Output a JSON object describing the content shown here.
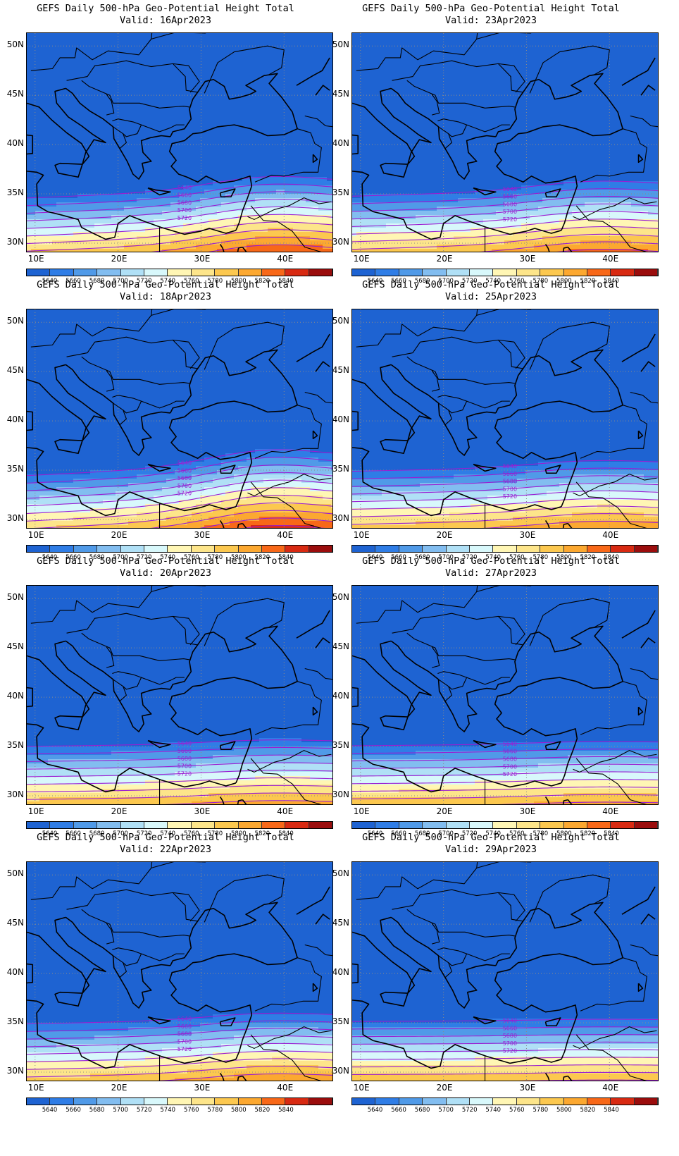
{
  "panels": [
    {
      "id": "p1",
      "title": "GEFS Daily 500-hPa Geo-Potential Height Total",
      "valid": "Valid: 16Apr2023",
      "amp": 1.0
    },
    {
      "id": "p2",
      "title": "GEFS Daily 500-hPa Geo-Potential Height Total",
      "valid": "Valid: 23Apr2023",
      "amp": 0.7
    },
    {
      "id": "p3",
      "title": "GEFS Daily 500-hPa Geo-Potential Height Total",
      "valid": "Valid: 18Apr2023",
      "amp": 1.2
    },
    {
      "id": "p4",
      "title": "GEFS Daily 500-hPa Geo-Potential Height Total",
      "valid": "Valid: 25Apr2023",
      "amp": 0.5
    },
    {
      "id": "p5",
      "title": "GEFS Daily 500-hPa Geo-Potential Height Total",
      "valid": "Valid: 20Apr2023",
      "amp": 0.3
    },
    {
      "id": "p6",
      "title": "GEFS Daily 500-hPa Geo-Potential Height Total",
      "valid": "Valid: 27Apr2023",
      "amp": 0.2
    },
    {
      "id": "p7",
      "title": "GEFS Daily 500-hPa Geo-Potential Height Total",
      "valid": "Valid: 22Apr2023",
      "amp": 0.5
    },
    {
      "id": "p8",
      "title": "GEFS Daily 500-hPa Geo-Potential Height Total",
      "valid": "Valid: 29Apr2023",
      "amp": 0.1
    }
  ],
  "lat_labels": [
    "50N",
    "45N",
    "40N",
    "35N",
    "30N"
  ],
  "lon_labels": [
    "10E",
    "20E",
    "30E",
    "40E"
  ],
  "colorbar": {
    "colors": [
      "#1e63d2",
      "#2f7de6",
      "#509ae8",
      "#82bdf0",
      "#b0e0f6",
      "#d8f8fb",
      "#fff6b4",
      "#fde58a",
      "#fcc84f",
      "#fca830",
      "#f86818",
      "#d82a12",
      "#9b0d0d"
    ],
    "labels": [
      "5640",
      "5660",
      "5680",
      "5700",
      "5720",
      "5740",
      "5760",
      "5780",
      "5800",
      "5820",
      "5840"
    ]
  },
  "contour_labels": [
    "5640",
    "5660",
    "5680",
    "5700",
    "5720"
  ],
  "colors": {
    "contour": "#9a1ed2",
    "coast": "#000000",
    "grid": "#8a8a8a"
  }
}
